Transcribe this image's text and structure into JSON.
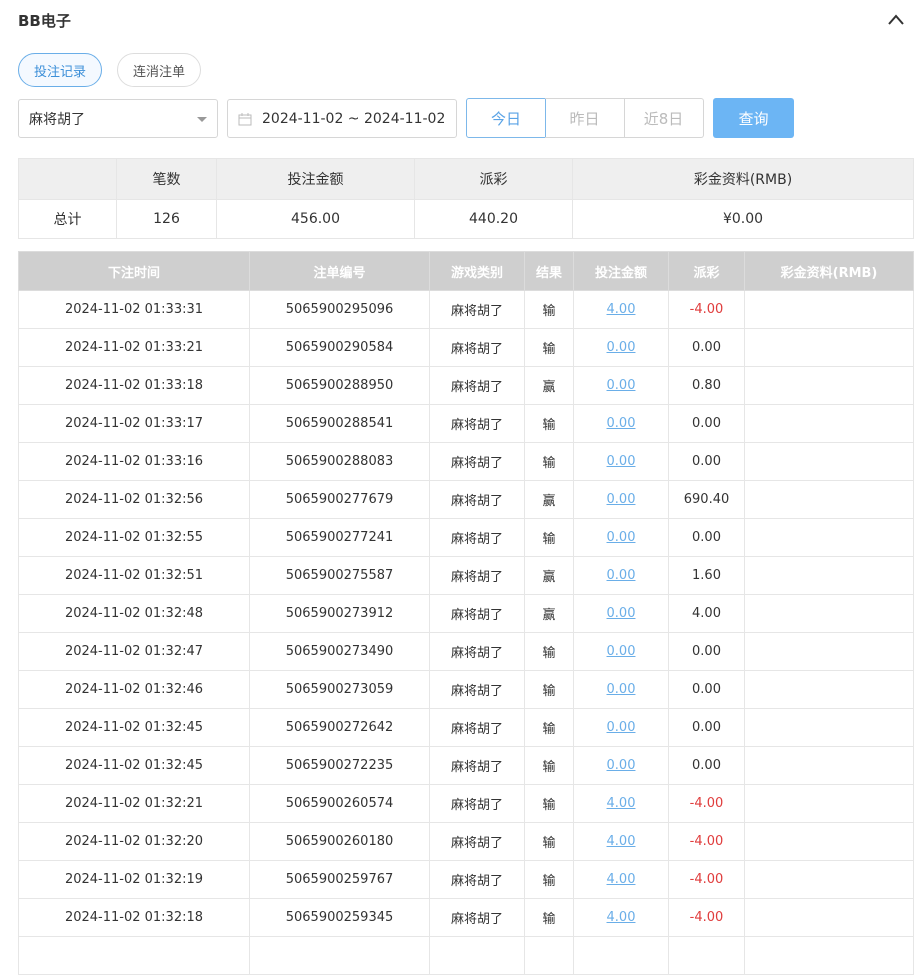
{
  "header": {
    "title": "BB电子"
  },
  "tabs": [
    "投注记录",
    "连消注单"
  ],
  "filters": {
    "game": "麻将胡了",
    "date_range": "2024-11-02 ~ 2024-11-02",
    "quick_ranges": [
      "今日",
      "昨日",
      "近8日"
    ],
    "query": "查询"
  },
  "summary": {
    "columns": [
      "笔数",
      "投注金额",
      "派彩",
      "彩金资料(RMB)"
    ],
    "row_label": "总计",
    "values": [
      "126",
      "456.00",
      "440.20",
      "¥0.00"
    ]
  },
  "table": {
    "columns": [
      "下注时间",
      "注单编号",
      "游戏类别",
      "结果",
      "投注金额",
      "派彩",
      "彩金资料(RMB)"
    ],
    "rows": [
      [
        "2024-11-02 01:33:31",
        "5065900295096",
        "麻将胡了",
        "输",
        "4.00",
        "-4.00"
      ],
      [
        "2024-11-02 01:33:21",
        "5065900290584",
        "麻将胡了",
        "输",
        "0.00",
        "0.00"
      ],
      [
        "2024-11-02 01:33:18",
        "5065900288950",
        "麻将胡了",
        "赢",
        "0.00",
        "0.80"
      ],
      [
        "2024-11-02 01:33:17",
        "5065900288541",
        "麻将胡了",
        "输",
        "0.00",
        "0.00"
      ],
      [
        "2024-11-02 01:33:16",
        "5065900288083",
        "麻将胡了",
        "输",
        "0.00",
        "0.00"
      ],
      [
        "2024-11-02 01:32:56",
        "5065900277679",
        "麻将胡了",
        "赢",
        "0.00",
        "690.40"
      ],
      [
        "2024-11-02 01:32:55",
        "5065900277241",
        "麻将胡了",
        "输",
        "0.00",
        "0.00"
      ],
      [
        "2024-11-02 01:32:51",
        "5065900275587",
        "麻将胡了",
        "赢",
        "0.00",
        "1.60"
      ],
      [
        "2024-11-02 01:32:48",
        "5065900273912",
        "麻将胡了",
        "赢",
        "0.00",
        "4.00"
      ],
      [
        "2024-11-02 01:32:47",
        "5065900273490",
        "麻将胡了",
        "输",
        "0.00",
        "0.00"
      ],
      [
        "2024-11-02 01:32:46",
        "5065900273059",
        "麻将胡了",
        "输",
        "0.00",
        "0.00"
      ],
      [
        "2024-11-02 01:32:45",
        "5065900272642",
        "麻将胡了",
        "输",
        "0.00",
        "0.00"
      ],
      [
        "2024-11-02 01:32:45",
        "5065900272235",
        "麻将胡了",
        "输",
        "0.00",
        "0.00"
      ],
      [
        "2024-11-02 01:32:21",
        "5065900260574",
        "麻将胡了",
        "输",
        "4.00",
        "-4.00"
      ],
      [
        "2024-11-02 01:32:20",
        "5065900260180",
        "麻将胡了",
        "输",
        "4.00",
        "-4.00"
      ],
      [
        "2024-11-02 01:32:19",
        "5065900259767",
        "麻将胡了",
        "输",
        "4.00",
        "-4.00"
      ],
      [
        "2024-11-02 01:32:18",
        "5065900259345",
        "麻将胡了",
        "输",
        "4.00",
        "-4.00"
      ]
    ]
  }
}
